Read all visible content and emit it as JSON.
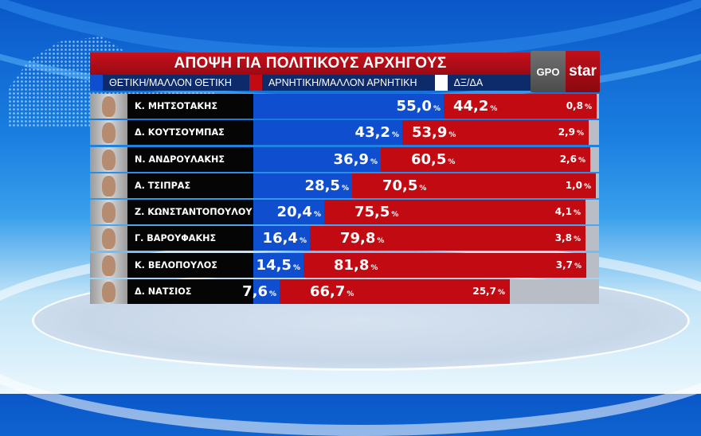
{
  "header": {
    "title": "ΑΠΟΨΗ ΓΙΑ ΠΟΛΙΤΙΚΟΥΣ ΑΡΧΗΓΟΥΣ",
    "logo_left": "GPO",
    "logo_right": "star"
  },
  "legend": [
    {
      "label": "ΘΕΤΙΚΗ/ΜΑΛΛΟΝ ΘΕΤΙΚΗ",
      "color": "#0f4fcf"
    },
    {
      "label": "ΑΡΝΗΤΙΚΗ/ΜΑΛΛΟΝ ΑΡΝΗΤΙΚΗ",
      "color": "#c20a12"
    },
    {
      "label": "ΔΞ/ΔΑ",
      "color": "#ffffff"
    }
  ],
  "colors": {
    "positive": "#0f4fcf",
    "negative": "#c20a12",
    "dk": "#b9bec6",
    "title_bg": "#b00d18",
    "legend_bg": "#0d2a6b"
  },
  "rows": [
    {
      "name": "Κ. ΜΗΤΣΟΤΑΚΗΣ",
      "pos": "55,0",
      "neg": "44,2",
      "dk": "0,8",
      "pct": "%"
    },
    {
      "name": "Δ. ΚΟΥΤΣΟΥΜΠΑΣ",
      "pos": "43,2",
      "neg": "53,9",
      "dk": "2,9",
      "pct": "%"
    },
    {
      "name": "Ν. ΑΝΔΡΟΥΛΑΚΗΣ",
      "pos": "36,9",
      "neg": "60,5",
      "dk": "2,6",
      "pct": "%"
    },
    {
      "name": "Α. ΤΣΙΠΡΑΣ",
      "pos": "28,5",
      "neg": "70,5",
      "dk": "1,0",
      "pct": "%"
    },
    {
      "name": "Ζ. ΚΩΝΣΤΑΝΤΟΠΟΥΛΟΥ",
      "pos": "20,4",
      "neg": "75,5",
      "dk": "4,1",
      "pct": "%"
    },
    {
      "name": "Γ. ΒΑΡΟΥΦΑΚΗΣ",
      "pos": "16,4",
      "neg": "79,8",
      "dk": "3,8",
      "pct": "%"
    },
    {
      "name": "Κ. ΒΕΛΟΠΟΥΛΟΣ",
      "pos": "14,5",
      "neg": "81,8",
      "dk": "3,7",
      "pct": "%"
    },
    {
      "name": "Δ. ΝΑΤΣΙΟΣ",
      "pos": "7,6",
      "neg": "66,7",
      "dk": "25,7",
      "pct": "%"
    }
  ],
  "chart_data": {
    "type": "bar",
    "orientation": "horizontal",
    "stacked": true,
    "title": "ΑΠΟΨΗ ΓΙΑ ΠΟΛΙΤΙΚΟΥΣ ΑΡΧΗΓΟΥΣ",
    "categories": [
      "Κ. ΜΗΤΣΟΤΑΚΗΣ",
      "Δ. ΚΟΥΤΣΟΥΜΠΑΣ",
      "Ν. ΑΝΔΡΟΥΛΑΚΗΣ",
      "Α. ΤΣΙΠΡΑΣ",
      "Ζ. ΚΩΝΣΤΑΝΤΟΠΟΥΛΟΥ",
      "Γ. ΒΑΡΟΥΦΑΚΗΣ",
      "Κ. ΒΕΛΟΠΟΥΛΟΣ",
      "Δ. ΝΑΤΣΙΟΣ"
    ],
    "series": [
      {
        "name": "ΘΕΤΙΚΗ/ΜΑΛΛΟΝ ΘΕΤΙΚΗ",
        "values": [
          55.0,
          43.2,
          36.9,
          28.5,
          20.4,
          16.4,
          14.5,
          7.6
        ]
      },
      {
        "name": "ΑΡΝΗΤΙΚΗ/ΜΑΛΛΟΝ ΑΡΝΗΤΙΚΗ",
        "values": [
          44.2,
          53.9,
          60.5,
          70.5,
          75.5,
          79.8,
          81.8,
          66.7
        ]
      },
      {
        "name": "ΔΞ/ΔΑ",
        "values": [
          0.8,
          2.9,
          2.6,
          1.0,
          4.1,
          3.8,
          3.7,
          25.7
        ]
      }
    ],
    "unit": "%",
    "xlim": [
      0,
      100
    ],
    "legend_position": "top"
  }
}
